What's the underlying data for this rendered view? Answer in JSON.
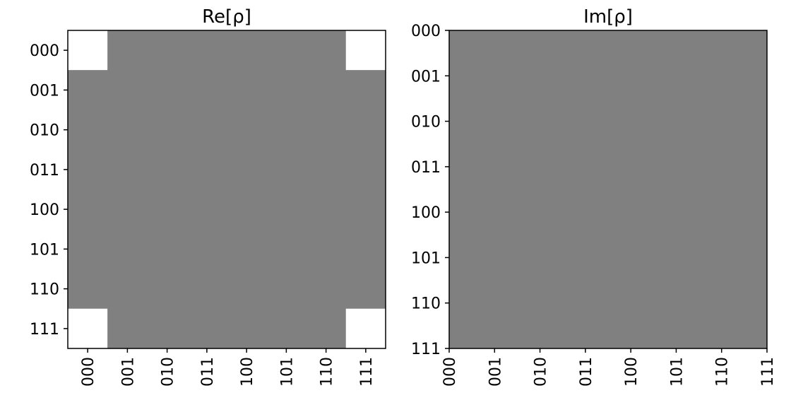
{
  "chart_data": [
    {
      "type": "heatmap",
      "title": "Re[ρ]",
      "x_tick_labels": [
        "000",
        "001",
        "010",
        "011",
        "100",
        "101",
        "110",
        "111"
      ],
      "y_tick_labels": [
        "000",
        "001",
        "010",
        "011",
        "100",
        "101",
        "110",
        "111"
      ],
      "value_range": [
        -0.5,
        0.5
      ],
      "colormap": "gray",
      "grid": false,
      "matrix": [
        [
          0.5,
          0,
          0,
          0,
          0,
          0,
          0,
          0.5
        ],
        [
          0,
          0,
          0,
          0,
          0,
          0,
          0,
          0
        ],
        [
          0,
          0,
          0,
          0,
          0,
          0,
          0,
          0
        ],
        [
          0,
          0,
          0,
          0,
          0,
          0,
          0,
          0
        ],
        [
          0,
          0,
          0,
          0,
          0,
          0,
          0,
          0
        ],
        [
          0,
          0,
          0,
          0,
          0,
          0,
          0,
          0
        ],
        [
          0,
          0,
          0,
          0,
          0,
          0,
          0,
          0
        ],
        [
          0.5,
          0,
          0,
          0,
          0,
          0,
          0,
          0.5
        ]
      ]
    },
    {
      "type": "heatmap",
      "title": "Im[ρ]",
      "x_tick_labels": [
        "000",
        "001",
        "010",
        "011",
        "100",
        "101",
        "110",
        "111"
      ],
      "y_tick_labels": [
        "000",
        "001",
        "010",
        "011",
        "100",
        "101",
        "110",
        "111"
      ],
      "value_range": [
        -0.5,
        0.5
      ],
      "colormap": "gray",
      "grid": false,
      "matrix": [
        [
          0,
          0,
          0,
          0,
          0,
          0,
          0,
          0
        ],
        [
          0,
          0,
          0,
          0,
          0,
          0,
          0,
          0
        ],
        [
          0,
          0,
          0,
          0,
          0,
          0,
          0,
          0
        ],
        [
          0,
          0,
          0,
          0,
          0,
          0,
          0,
          0
        ],
        [
          0,
          0,
          0,
          0,
          0,
          0,
          0,
          0
        ],
        [
          0,
          0,
          0,
          0,
          0,
          0,
          0,
          0
        ],
        [
          0,
          0,
          0,
          0,
          0,
          0,
          0,
          0
        ],
        [
          0,
          0,
          0,
          0,
          0,
          0,
          0,
          0
        ]
      ]
    }
  ]
}
